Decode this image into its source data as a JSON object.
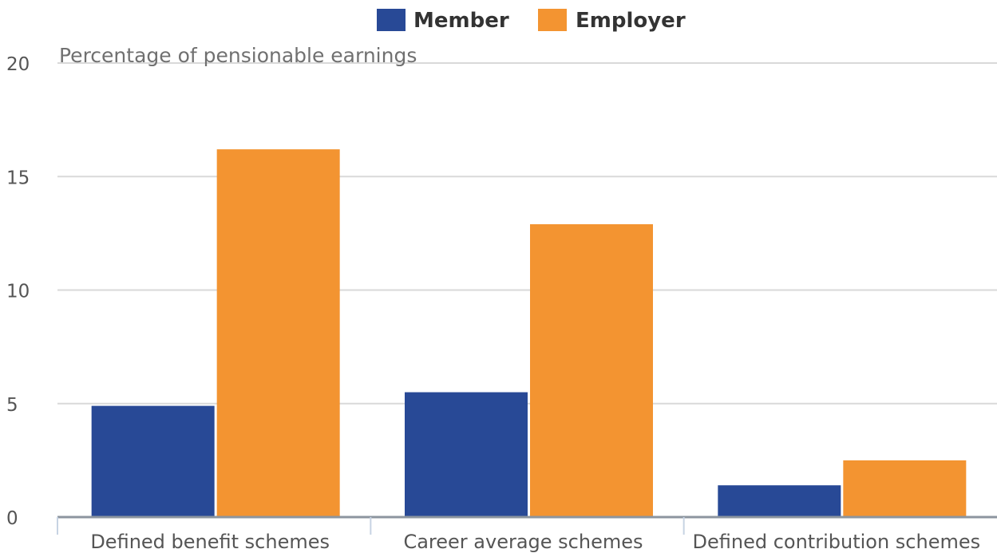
{
  "chart_data": {
    "type": "bar",
    "title": "",
    "ylabel": "Percentage of pensionable earnings",
    "xlabel": "",
    "ylim": [
      0,
      20
    ],
    "yticks": [
      0,
      5,
      10,
      15,
      20
    ],
    "grid": true,
    "legend_position": "top-center",
    "categories": [
      "Defined benefit schemes",
      "Career average schemes",
      "Defined contribution schemes"
    ],
    "series": [
      {
        "name": "Member",
        "color": "#284996",
        "values": [
          4.9,
          5.5,
          1.4
        ]
      },
      {
        "name": "Employer",
        "color": "#f39431",
        "values": [
          16.2,
          12.9,
          2.5
        ]
      }
    ]
  }
}
